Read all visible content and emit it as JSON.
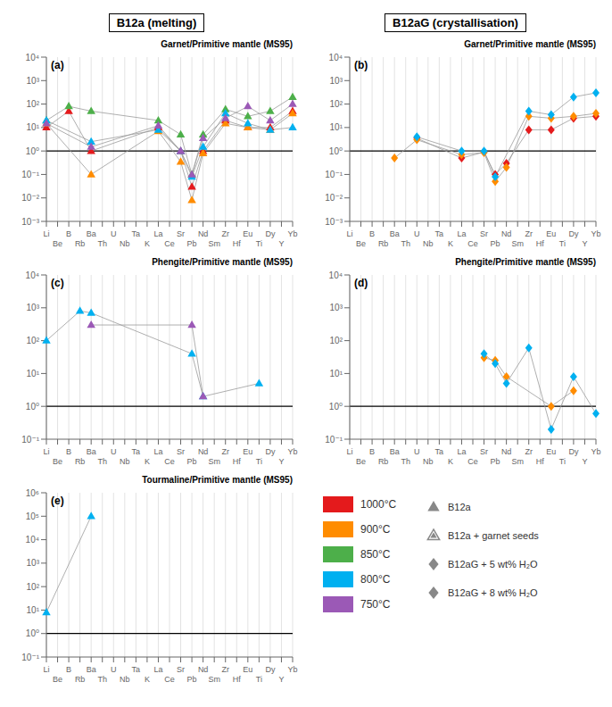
{
  "titles": [
    "B12a (melting)",
    "B12aG (crystallisation)"
  ],
  "symbol_legend": [
    {
      "name": "B12a",
      "marker": "triangle"
    },
    {
      "name": "B12a + garnet seeds",
      "marker": "triangle-open"
    },
    {
      "name": "B12aG + 5 wt% H₂O",
      "marker": "diamond"
    },
    {
      "name": "B12aG + 8 wt% H₂O",
      "marker": "diamond"
    }
  ],
  "chart_data": [
    {
      "type": "line",
      "title": "Garnet/Primitive mantle (MS95)",
      "annotations": [
        "(a)"
      ],
      "log": "y",
      "grid": "x",
      "hline": 1,
      "ylim": [
        0.001,
        10000
      ],
      "yticks": [
        {
          "value": 0.001,
          "label": "10⁻³"
        },
        {
          "value": 0.01,
          "label": "10⁻²"
        },
        {
          "value": 0.1,
          "label": "10⁻¹"
        },
        {
          "value": 1,
          "label": "10⁰"
        },
        {
          "value": 10,
          "label": "10¹"
        },
        {
          "value": 100,
          "label": "10²"
        },
        {
          "value": 1000,
          "label": "10³"
        },
        {
          "value": 10000,
          "label": "10⁴"
        }
      ],
      "categories": [
        "Li",
        "Be",
        "B",
        "Rb",
        "Ba",
        "Th",
        "U",
        "Nb",
        "Ta",
        "K",
        "La",
        "Ce",
        "Sr",
        "Pb",
        "Nd",
        "Sm",
        "Zr",
        "Hf",
        "Eu",
        "Ti",
        "Dy",
        "Y",
        "Yb"
      ],
      "series": [
        {
          "name": "1000°C",
          "color": "#e41a1c",
          "marker": "triangle",
          "line_style": "solid",
          "values": [
            10,
            null,
            50,
            null,
            1.0,
            null,
            null,
            null,
            null,
            null,
            10,
            null,
            1.0,
            0.03,
            1.0,
            null,
            20,
            null,
            10,
            null,
            10,
            null,
            50
          ]
        },
        {
          "name": "900°C",
          "color": "#ff8c00",
          "marker": "triangle",
          "line_style": "solid",
          "values": [
            15,
            null,
            null,
            null,
            0.1,
            null,
            null,
            null,
            null,
            null,
            7,
            null,
            0.35,
            0.008,
            0.8,
            null,
            15,
            null,
            10,
            null,
            8,
            null,
            40
          ]
        },
        {
          "name": "850°C",
          "color": "#4daf4a",
          "marker": "triangle",
          "line_style": "solid",
          "values": [
            20,
            null,
            80,
            null,
            50,
            null,
            null,
            null,
            null,
            null,
            20,
            null,
            5,
            0.1,
            5,
            null,
            60,
            null,
            30,
            null,
            50,
            null,
            200
          ]
        },
        {
          "name": "800°C",
          "color": "#00b0f0",
          "marker": "triangle",
          "line_style": "solid",
          "values": [
            20,
            null,
            null,
            null,
            2.5,
            null,
            null,
            null,
            null,
            null,
            8,
            null,
            1.0,
            0.08,
            1.5,
            null,
            40,
            null,
            15,
            null,
            8,
            null,
            10
          ]
        },
        {
          "name": "750°C",
          "color": "#9b59b6",
          "marker": "triangle",
          "line_style": "solid",
          "values": [
            15,
            null,
            null,
            null,
            1.5,
            null,
            null,
            null,
            null,
            null,
            12,
            null,
            1.0,
            0.1,
            3.5,
            null,
            25,
            null,
            80,
            null,
            20,
            null,
            100
          ]
        }
      ]
    },
    {
      "type": "line",
      "title": "Garnet/Primitive mantle (MS95)",
      "annotations": [
        "(b)"
      ],
      "log": "y",
      "grid": "x",
      "hline": 1,
      "ylim": [
        0.001,
        10000
      ],
      "yticks": [
        {
          "value": 0.001,
          "label": "10⁻³"
        },
        {
          "value": 0.01,
          "label": "10⁻²"
        },
        {
          "value": 0.1,
          "label": "10⁻¹"
        },
        {
          "value": 1,
          "label": "10⁰"
        },
        {
          "value": 10,
          "label": "10¹"
        },
        {
          "value": 100,
          "label": "10²"
        },
        {
          "value": 1000,
          "label": "10³"
        },
        {
          "value": 10000,
          "label": "10⁴"
        }
      ],
      "categories": [
        "Li",
        "Be",
        "B",
        "Rb",
        "Ba",
        "Th",
        "U",
        "Nb",
        "Ta",
        "K",
        "La",
        "Ce",
        "Sr",
        "Pb",
        "Nd",
        "Sm",
        "Zr",
        "Hf",
        "Eu",
        "Ti",
        "Dy",
        "Y",
        "Yb"
      ],
      "series": [
        {
          "name": "1000°C",
          "color": "#e41a1c",
          "marker": "diamond",
          "line_style": "solid",
          "values": [
            null,
            null,
            null,
            null,
            null,
            null,
            3.5,
            null,
            null,
            null,
            0.5,
            null,
            0.9,
            0.1,
            0.3,
            null,
            8,
            null,
            8,
            null,
            25,
            null,
            30
          ]
        },
        {
          "name": "900°C",
          "color": "#ff8c00",
          "marker": "diamond",
          "line_style": "solid",
          "values": [
            null,
            null,
            null,
            null,
            0.5,
            null,
            3.0,
            null,
            null,
            null,
            0.7,
            null,
            0.85,
            0.05,
            0.2,
            null,
            30,
            null,
            25,
            null,
            30,
            null,
            40
          ]
        },
        {
          "name": "800°C",
          "color": "#00b0f0",
          "marker": "diamond",
          "line_style": "solid",
          "values": [
            null,
            null,
            null,
            null,
            null,
            null,
            4.0,
            null,
            null,
            null,
            1.0,
            null,
            1.0,
            0.08,
            null,
            null,
            50,
            null,
            35,
            null,
            200,
            null,
            300
          ]
        }
      ]
    },
    {
      "type": "line",
      "title": "Phengite/Primitive mantle (MS95)",
      "annotations": [
        "(c)"
      ],
      "log": "y",
      "grid": "x",
      "hline": 1,
      "ylim": [
        0.1,
        10000
      ],
      "yticks": [
        {
          "value": 0.1,
          "label": "10⁻¹"
        },
        {
          "value": 1,
          "label": "10⁰"
        },
        {
          "value": 10,
          "label": "10¹"
        },
        {
          "value": 100,
          "label": "10²"
        },
        {
          "value": 1000,
          "label": "10³"
        },
        {
          "value": 10000,
          "label": "10⁴"
        }
      ],
      "categories": [
        "Li",
        "Be",
        "B",
        "Rb",
        "Ba",
        "Th",
        "U",
        "Nb",
        "Ta",
        "K",
        "La",
        "Ce",
        "Sr",
        "Pb",
        "Nd",
        "Sm",
        "Zr",
        "Hf",
        "Eu",
        "Ti",
        "Dy",
        "Y",
        "Yb"
      ],
      "series": [
        {
          "name": "800°C",
          "color": "#00b0f0",
          "marker": "triangle",
          "line_style": "solid",
          "values": [
            100,
            null,
            null,
            800,
            700,
            null,
            null,
            null,
            null,
            null,
            null,
            null,
            null,
            40,
            2,
            null,
            null,
            null,
            null,
            5,
            null,
            null,
            null
          ]
        },
        {
          "name": "750°C",
          "color": "#9b59b6",
          "marker": "triangle",
          "line_style": "solid",
          "values": [
            null,
            null,
            null,
            null,
            300,
            null,
            null,
            null,
            null,
            null,
            null,
            null,
            null,
            300,
            2,
            null,
            null,
            null,
            null,
            null,
            null,
            null,
            null
          ]
        }
      ]
    },
    {
      "type": "line",
      "title": "Phengite/Primitive mantle (MS95)",
      "annotations": [
        "(d)"
      ],
      "log": "y",
      "grid": "x",
      "hline": 1,
      "ylim": [
        0.1,
        10000
      ],
      "yticks": [
        {
          "value": 0.1,
          "label": "10⁻¹"
        },
        {
          "value": 1,
          "label": "10⁰"
        },
        {
          "value": 10,
          "label": "10¹"
        },
        {
          "value": 100,
          "label": "10²"
        },
        {
          "value": 1000,
          "label": "10³"
        },
        {
          "value": 10000,
          "label": "10⁴"
        }
      ],
      "categories": [
        "Li",
        "Be",
        "B",
        "Rb",
        "Ba",
        "Th",
        "U",
        "Nb",
        "Ta",
        "K",
        "La",
        "Ce",
        "Sr",
        "Pb",
        "Nd",
        "Sm",
        "Zr",
        "Hf",
        "Eu",
        "Ti",
        "Dy",
        "Y",
        "Yb"
      ],
      "series": [
        {
          "name": "900°C",
          "color": "#ff8c00",
          "marker": "diamond",
          "line_style": "solid",
          "values": [
            null,
            null,
            null,
            null,
            null,
            null,
            null,
            null,
            null,
            null,
            null,
            null,
            30,
            25,
            8,
            null,
            null,
            null,
            1.0,
            null,
            3,
            null,
            null
          ]
        },
        {
          "name": "800°C",
          "color": "#00b0f0",
          "marker": "diamond",
          "line_style": "solid",
          "values": [
            null,
            null,
            null,
            null,
            null,
            null,
            null,
            null,
            null,
            null,
            null,
            null,
            40,
            20,
            5,
            null,
            60,
            null,
            0.2,
            null,
            8,
            null,
            0.6
          ]
        }
      ]
    },
    {
      "type": "line",
      "title": "Tourmaline/Primitive mantle (MS95)",
      "annotations": [
        "(e)"
      ],
      "log": "y",
      "grid": "x",
      "hline": 1,
      "ylim": [
        0.1,
        1000000
      ],
      "yticks": [
        {
          "value": 0.1,
          "label": "10⁻¹"
        },
        {
          "value": 1,
          "label": "10⁰"
        },
        {
          "value": 10,
          "label": "10¹"
        },
        {
          "value": 100,
          "label": "10²"
        },
        {
          "value": 1000,
          "label": "10³"
        },
        {
          "value": 10000,
          "label": "10⁴"
        },
        {
          "value": 100000,
          "label": "10⁵"
        },
        {
          "value": 1000000,
          "label": "10⁶"
        }
      ],
      "categories": [
        "Li",
        "Be",
        "B",
        "Rb",
        "Ba",
        "Th",
        "U",
        "Nb",
        "Ta",
        "K",
        "La",
        "Ce",
        "Sr",
        "Pb",
        "Nd",
        "Sm",
        "Zr",
        "Hf",
        "Eu",
        "Ti",
        "Dy",
        "Y",
        "Yb"
      ],
      "series": [
        {
          "name": "800°C",
          "color": "#00b0f0",
          "marker": "triangle",
          "line_style": "solid",
          "values": [
            8,
            null,
            null,
            null,
            100000,
            null,
            null,
            null,
            null,
            null,
            null,
            null,
            null,
            null,
            null,
            null,
            null,
            null,
            null,
            null,
            null,
            null,
            null
          ]
        }
      ]
    }
  ]
}
